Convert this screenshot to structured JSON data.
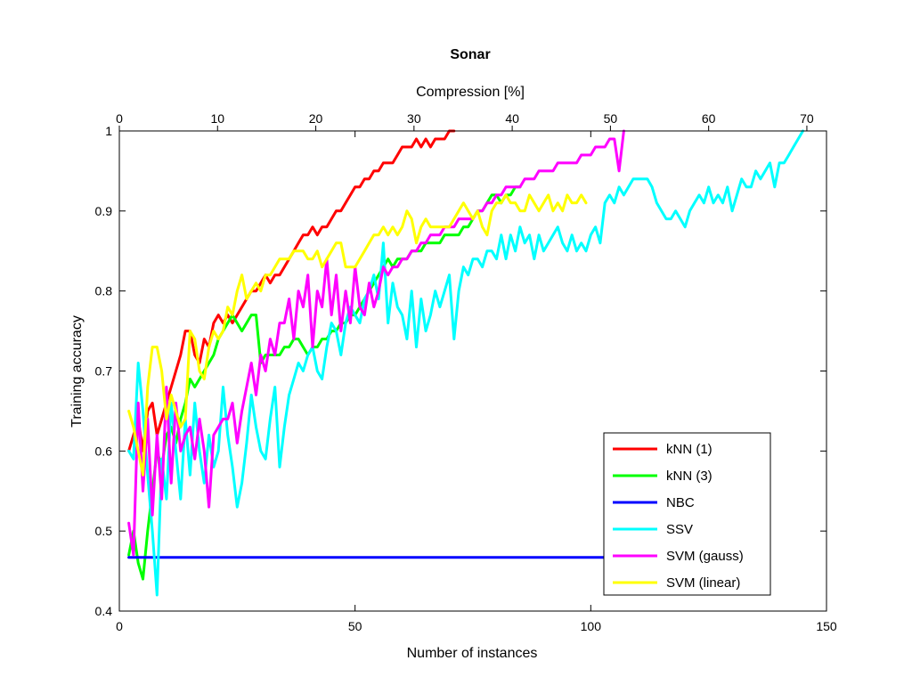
{
  "chart_data": {
    "type": "line",
    "title": "Sonar",
    "xlabel": "Number of instances",
    "ylabel": "Training accuracy",
    "x2label": "Compression [%]",
    "xlim": [
      0,
      150
    ],
    "ylim": [
      0.4,
      1.0
    ],
    "x2lim": [
      0,
      72
    ],
    "xticks": [
      0,
      50,
      100,
      150
    ],
    "yticks": [
      0.4,
      0.5,
      0.6,
      0.7,
      0.8,
      0.9,
      1.0
    ],
    "x2ticks": [
      0,
      10,
      20,
      30,
      40,
      50,
      60,
      70
    ],
    "grid": false,
    "legend_position": "bottom-right",
    "series": [
      {
        "name": "kNN (1)",
        "color": "#ff0000",
        "x": [
          2,
          3,
          4,
          5,
          6,
          7,
          8,
          9,
          10,
          11,
          12,
          13,
          14,
          15,
          16,
          17,
          18,
          19,
          20,
          21,
          22,
          23,
          24,
          25,
          26,
          27,
          28,
          29,
          30,
          31,
          32,
          33,
          34,
          35,
          36,
          37,
          38,
          39,
          40,
          41,
          42,
          43,
          44,
          45,
          46,
          47,
          48,
          49,
          50,
          51,
          52,
          53,
          54,
          55,
          56,
          57,
          58,
          59,
          60,
          61,
          62,
          63,
          64,
          65,
          66,
          67,
          68,
          69,
          70,
          71
        ],
        "y": [
          0.6,
          0.62,
          0.64,
          0.6,
          0.65,
          0.66,
          0.62,
          0.64,
          0.66,
          0.68,
          0.7,
          0.72,
          0.75,
          0.75,
          0.72,
          0.71,
          0.74,
          0.73,
          0.76,
          0.77,
          0.76,
          0.77,
          0.76,
          0.77,
          0.78,
          0.79,
          0.8,
          0.8,
          0.81,
          0.82,
          0.81,
          0.82,
          0.82,
          0.83,
          0.84,
          0.85,
          0.86,
          0.87,
          0.87,
          0.88,
          0.87,
          0.88,
          0.88,
          0.89,
          0.9,
          0.9,
          0.91,
          0.92,
          0.93,
          0.93,
          0.94,
          0.94,
          0.95,
          0.95,
          0.96,
          0.96,
          0.96,
          0.97,
          0.98,
          0.98,
          0.98,
          0.99,
          0.98,
          0.99,
          0.98,
          0.99,
          0.99,
          0.99,
          1.0,
          1.0
        ]
      },
      {
        "name": "kNN (3)",
        "color": "#00ff00",
        "x": [
          2,
          3,
          4,
          5,
          6,
          7,
          8,
          9,
          10,
          11,
          12,
          13,
          14,
          15,
          16,
          17,
          18,
          19,
          20,
          21,
          22,
          23,
          24,
          25,
          26,
          27,
          28,
          29,
          30,
          31,
          32,
          33,
          34,
          35,
          36,
          37,
          38,
          39,
          40,
          41,
          42,
          43,
          44,
          45,
          46,
          47,
          48,
          49,
          50,
          51,
          52,
          53,
          54,
          55,
          56,
          57,
          58,
          59,
          60,
          61,
          62,
          63,
          64,
          65,
          66,
          67,
          68,
          69,
          70,
          71,
          72,
          73,
          74,
          75,
          76,
          77,
          78,
          79,
          80,
          81,
          82,
          83,
          84,
          85
        ],
        "y": [
          0.47,
          0.5,
          0.46,
          0.44,
          0.5,
          0.55,
          0.6,
          0.58,
          0.62,
          0.63,
          0.61,
          0.64,
          0.66,
          0.69,
          0.68,
          0.69,
          0.7,
          0.71,
          0.72,
          0.74,
          0.75,
          0.76,
          0.77,
          0.76,
          0.75,
          0.76,
          0.77,
          0.77,
          0.71,
          0.72,
          0.72,
          0.72,
          0.72,
          0.73,
          0.73,
          0.74,
          0.74,
          0.73,
          0.72,
          0.73,
          0.73,
          0.74,
          0.74,
          0.75,
          0.75,
          0.76,
          0.76,
          0.77,
          0.77,
          0.78,
          0.79,
          0.8,
          0.81,
          0.82,
          0.83,
          0.84,
          0.83,
          0.84,
          0.84,
          0.84,
          0.85,
          0.85,
          0.85,
          0.86,
          0.86,
          0.86,
          0.86,
          0.87,
          0.87,
          0.87,
          0.87,
          0.88,
          0.88,
          0.89,
          0.9,
          0.9,
          0.91,
          0.92,
          0.92,
          0.91,
          0.92,
          0.92,
          0.93,
          0.93
        ]
      },
      {
        "name": "NBC",
        "color": "#0000ff",
        "x": [
          2,
          105
        ],
        "y": [
          0.467,
          0.467
        ]
      },
      {
        "name": "SSV",
        "color": "#00ffff",
        "x": [
          2,
          3,
          4,
          5,
          6,
          7,
          8,
          9,
          10,
          11,
          12,
          13,
          14,
          15,
          16,
          17,
          18,
          19,
          20,
          21,
          22,
          23,
          24,
          25,
          26,
          27,
          28,
          29,
          30,
          31,
          32,
          33,
          34,
          35,
          36,
          37,
          38,
          39,
          40,
          41,
          42,
          43,
          44,
          45,
          46,
          47,
          48,
          49,
          50,
          51,
          52,
          53,
          54,
          55,
          56,
          57,
          58,
          59,
          60,
          61,
          62,
          63,
          64,
          65,
          66,
          67,
          68,
          69,
          70,
          71,
          72,
          73,
          74,
          75,
          76,
          77,
          78,
          79,
          80,
          81,
          82,
          83,
          84,
          85,
          86,
          87,
          88,
          89,
          90,
          91,
          92,
          93,
          94,
          95,
          96,
          97,
          98,
          99,
          100,
          101,
          102,
          103,
          104,
          105,
          106,
          107,
          108,
          109,
          110,
          111,
          112,
          113,
          114,
          115,
          116,
          117,
          118,
          119,
          120,
          121,
          122,
          123,
          124,
          125,
          126,
          127,
          128,
          129,
          130,
          131,
          132,
          133,
          134,
          135,
          136,
          137,
          138,
          139,
          140,
          141,
          142,
          143,
          144,
          145
        ],
        "y": [
          0.6,
          0.59,
          0.71,
          0.65,
          0.57,
          0.5,
          0.42,
          0.59,
          0.54,
          0.66,
          0.6,
          0.54,
          0.64,
          0.57,
          0.66,
          0.6,
          0.56,
          0.62,
          0.58,
          0.6,
          0.68,
          0.62,
          0.58,
          0.53,
          0.56,
          0.61,
          0.67,
          0.63,
          0.6,
          0.59,
          0.64,
          0.68,
          0.58,
          0.63,
          0.67,
          0.69,
          0.71,
          0.7,
          0.72,
          0.73,
          0.7,
          0.69,
          0.73,
          0.76,
          0.75,
          0.72,
          0.76,
          0.78,
          0.77,
          0.76,
          0.79,
          0.8,
          0.82,
          0.79,
          0.86,
          0.76,
          0.81,
          0.78,
          0.77,
          0.74,
          0.8,
          0.73,
          0.79,
          0.75,
          0.77,
          0.8,
          0.78,
          0.8,
          0.82,
          0.74,
          0.8,
          0.83,
          0.82,
          0.84,
          0.84,
          0.83,
          0.85,
          0.85,
          0.84,
          0.87,
          0.84,
          0.87,
          0.85,
          0.88,
          0.86,
          0.87,
          0.84,
          0.87,
          0.85,
          0.86,
          0.87,
          0.88,
          0.86,
          0.85,
          0.87,
          0.85,
          0.86,
          0.85,
          0.87,
          0.88,
          0.86,
          0.91,
          0.92,
          0.91,
          0.93,
          0.92,
          0.93,
          0.94,
          0.94,
          0.94,
          0.94,
          0.93,
          0.91,
          0.9,
          0.89,
          0.89,
          0.9,
          0.89,
          0.88,
          0.9,
          0.91,
          0.92,
          0.91,
          0.93,
          0.91,
          0.92,
          0.91,
          0.93,
          0.9,
          0.92,
          0.94,
          0.93,
          0.93,
          0.95,
          0.94,
          0.95,
          0.96,
          0.93,
          0.96,
          0.96,
          0.97,
          0.98,
          0.99,
          1.0
        ]
      },
      {
        "name": "SVM (gauss)",
        "color": "#ff00ff",
        "x": [
          2,
          3,
          4,
          5,
          6,
          7,
          8,
          9,
          10,
          11,
          12,
          13,
          14,
          15,
          16,
          17,
          18,
          19,
          20,
          21,
          22,
          23,
          24,
          25,
          26,
          27,
          28,
          29,
          30,
          31,
          32,
          33,
          34,
          35,
          36,
          37,
          38,
          39,
          40,
          41,
          42,
          43,
          44,
          45,
          46,
          47,
          48,
          49,
          50,
          51,
          52,
          53,
          54,
          55,
          56,
          57,
          58,
          59,
          60,
          61,
          62,
          63,
          64,
          65,
          66,
          67,
          68,
          69,
          70,
          71,
          72,
          73,
          74,
          75,
          76,
          77,
          78,
          79,
          80,
          81,
          82,
          83,
          84,
          85,
          86,
          87,
          88,
          89,
          90,
          91,
          92,
          93,
          94,
          95,
          96,
          97,
          98,
          99,
          100,
          101,
          102,
          103,
          104,
          105,
          106,
          107
        ],
        "y": [
          0.51,
          0.47,
          0.66,
          0.55,
          0.64,
          0.52,
          0.62,
          0.54,
          0.68,
          0.56,
          0.66,
          0.6,
          0.62,
          0.63,
          0.59,
          0.64,
          0.6,
          0.53,
          0.62,
          0.63,
          0.64,
          0.64,
          0.66,
          0.61,
          0.65,
          0.68,
          0.71,
          0.67,
          0.72,
          0.7,
          0.74,
          0.72,
          0.76,
          0.76,
          0.79,
          0.74,
          0.8,
          0.78,
          0.82,
          0.73,
          0.8,
          0.78,
          0.84,
          0.77,
          0.82,
          0.75,
          0.8,
          0.76,
          0.83,
          0.78,
          0.77,
          0.81,
          0.78,
          0.8,
          0.83,
          0.82,
          0.83,
          0.83,
          0.84,
          0.84,
          0.85,
          0.85,
          0.86,
          0.86,
          0.87,
          0.87,
          0.87,
          0.88,
          0.88,
          0.88,
          0.89,
          0.89,
          0.89,
          0.89,
          0.9,
          0.9,
          0.91,
          0.91,
          0.92,
          0.92,
          0.93,
          0.93,
          0.93,
          0.93,
          0.94,
          0.94,
          0.94,
          0.95,
          0.95,
          0.95,
          0.95,
          0.96,
          0.96,
          0.96,
          0.96,
          0.96,
          0.97,
          0.97,
          0.97,
          0.98,
          0.98,
          0.98,
          0.99,
          0.99,
          0.95,
          1.0
        ]
      },
      {
        "name": "SVM (linear)",
        "color": "#ffff00",
        "x": [
          2,
          3,
          4,
          5,
          6,
          7,
          8,
          9,
          10,
          11,
          12,
          13,
          14,
          15,
          16,
          17,
          18,
          19,
          20,
          21,
          22,
          23,
          24,
          25,
          26,
          27,
          28,
          29,
          30,
          31,
          32,
          33,
          34,
          35,
          36,
          37,
          38,
          39,
          40,
          41,
          42,
          43,
          44,
          45,
          46,
          47,
          48,
          49,
          50,
          51,
          52,
          53,
          54,
          55,
          56,
          57,
          58,
          59,
          60,
          61,
          62,
          63,
          64,
          65,
          66,
          67,
          68,
          69,
          70,
          71,
          72,
          73,
          74,
          75,
          76,
          77,
          78,
          79,
          80,
          81,
          82,
          83,
          84,
          85,
          86,
          87,
          88,
          89,
          90,
          91,
          92,
          93,
          94,
          95,
          96,
          97,
          98,
          99
        ],
        "y": [
          0.65,
          0.63,
          0.6,
          0.57,
          0.68,
          0.73,
          0.73,
          0.7,
          0.64,
          0.67,
          0.65,
          0.63,
          0.64,
          0.75,
          0.74,
          0.7,
          0.69,
          0.73,
          0.75,
          0.74,
          0.75,
          0.78,
          0.77,
          0.8,
          0.82,
          0.79,
          0.8,
          0.81,
          0.8,
          0.82,
          0.82,
          0.83,
          0.84,
          0.84,
          0.84,
          0.85,
          0.85,
          0.85,
          0.84,
          0.84,
          0.85,
          0.83,
          0.84,
          0.85,
          0.86,
          0.86,
          0.83,
          0.83,
          0.83,
          0.84,
          0.85,
          0.86,
          0.87,
          0.87,
          0.88,
          0.87,
          0.88,
          0.87,
          0.88,
          0.9,
          0.89,
          0.86,
          0.88,
          0.89,
          0.88,
          0.88,
          0.88,
          0.88,
          0.88,
          0.89,
          0.9,
          0.91,
          0.9,
          0.89,
          0.9,
          0.88,
          0.87,
          0.9,
          0.91,
          0.91,
          0.92,
          0.91,
          0.91,
          0.9,
          0.9,
          0.92,
          0.91,
          0.9,
          0.91,
          0.92,
          0.9,
          0.91,
          0.9,
          0.92,
          0.91,
          0.91,
          0.92,
          0.91
        ]
      }
    ]
  }
}
